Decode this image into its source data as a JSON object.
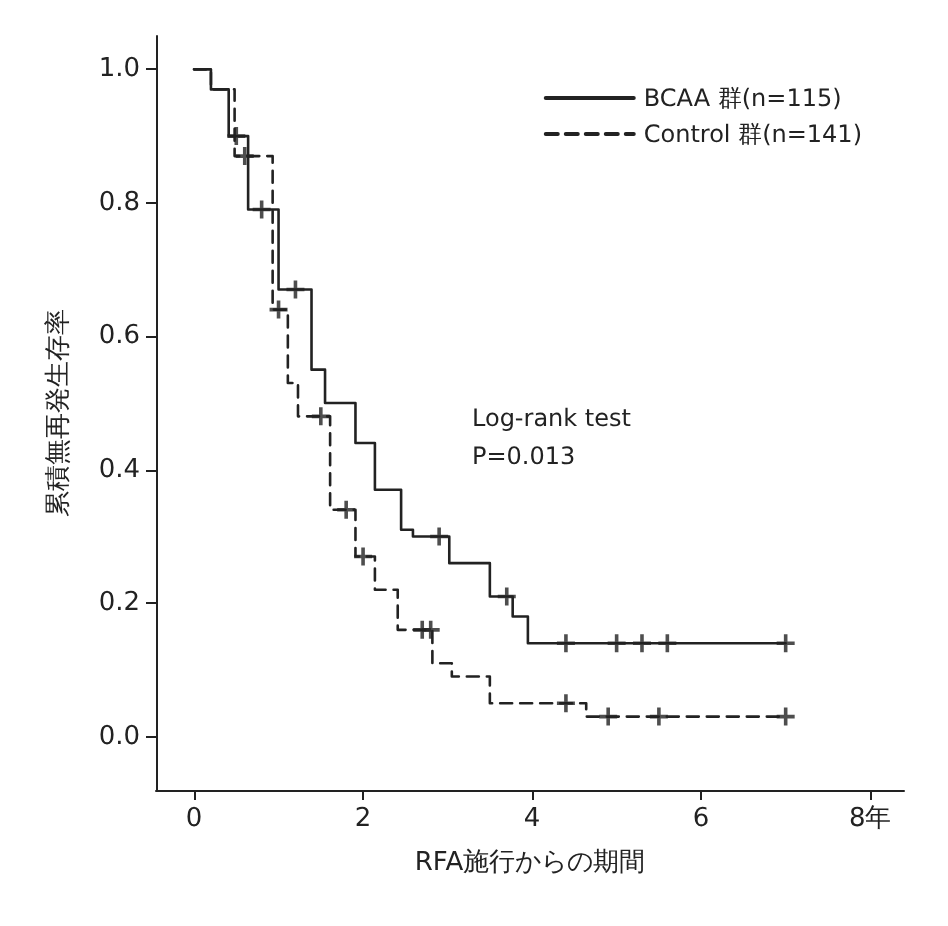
{
  "chart_data": {
    "type": "step",
    "xlabel": "RFA施行からの期間",
    "ylabel": "累積無再発生存率",
    "xlim": [
      -0.45,
      8.4
    ],
    "xticks": [
      0,
      2,
      4,
      6,
      {
        "value": 8,
        "label": "8年"
      }
    ],
    "ylim": [
      -0.08,
      1.05
    ],
    "yticks": [
      {
        "value": 0,
        "label": "0.0"
      },
      0.2,
      0.4,
      0.6,
      0.8,
      {
        "value": 1,
        "label": "1.0"
      }
    ],
    "grid": false,
    "legend": "top right",
    "marker": "none",
    "annotations": [
      "Log-rank test",
      "P=0.013"
    ],
    "series": [
      {
        "name": "BCAA 群(n=115)",
        "color": "#222222",
        "line_style": "solid",
        "x": [
          0,
          0.2,
          0.41,
          0.64,
          1.0,
          1.39,
          1.55,
          1.91,
          2.14,
          2.45,
          2.59,
          3.02,
          3.5,
          3.77,
          3.95,
          7.0
        ],
        "values": [
          1.0,
          0.97,
          0.9,
          0.79,
          0.67,
          0.55,
          0.5,
          0.44,
          0.37,
          0.31,
          0.3,
          0.26,
          0.21,
          0.18,
          0.14,
          0.14
        ]
      },
      {
        "name": "Control 群(n=141)",
        "color": "#222222",
        "line_style": "dashed",
        "x": [
          0,
          0.2,
          0.48,
          0.93,
          1.11,
          1.23,
          1.61,
          1.91,
          2.14,
          2.41,
          2.82,
          3.05,
          3.5,
          4.64,
          7.0
        ],
        "values": [
          1.0,
          0.97,
          0.87,
          0.64,
          0.53,
          0.48,
          0.34,
          0.27,
          0.22,
          0.16,
          0.11,
          0.09,
          0.05,
          0.03,
          0.03
        ]
      },
      {
        "type": "scatter",
        "marker": "cross",
        "color": "#222222",
        "x": [
          0.5,
          0.8,
          1.2,
          2.9,
          3.7,
          4.4,
          5.0,
          5.3,
          5.6,
          7.0
        ],
        "values": [
          0.9,
          0.79,
          0.67,
          0.3,
          0.21,
          0.14,
          0.14,
          0.14,
          0.14,
          0.14
        ]
      },
      {
        "type": "scatter",
        "marker": "cross",
        "color": "#222222",
        "x": [
          0.6,
          1.0,
          1.5,
          1.8,
          2.0,
          2.7,
          2.8,
          4.4,
          4.9,
          5.5,
          7.0
        ],
        "values": [
          0.87,
          0.64,
          0.48,
          0.34,
          0.27,
          0.16,
          0.16,
          0.05,
          0.03,
          0.03,
          0.03
        ]
      }
    ]
  }
}
